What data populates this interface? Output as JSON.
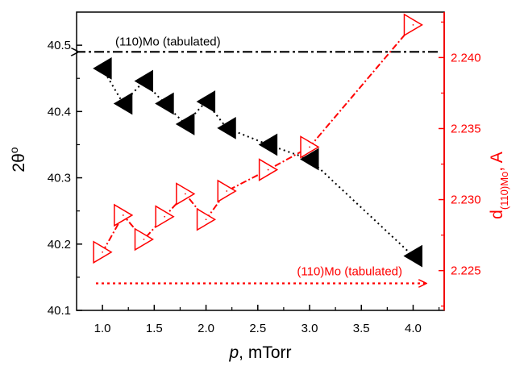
{
  "chart_data": {
    "type": "scatter",
    "xlabel": "p, mTorr",
    "ylabel_left": "2θ°",
    "ylabel_right": "d(110)Mo, A",
    "xlim": [
      0.75,
      4.3
    ],
    "ylim_left": [
      40.1,
      40.55
    ],
    "ylim_right": [
      2.2222,
      2.2432
    ],
    "x_ticks": [
      "1.0",
      "1.5",
      "2.0",
      "2.5",
      "3.0",
      "3.5",
      "4.0"
    ],
    "y_left_ticks": [
      "40.1",
      "40.2",
      "40.3",
      "40.4",
      "40.5"
    ],
    "y_right_ticks": [
      "2.225",
      "2.230",
      "2.235",
      "2.240"
    ],
    "grid": false,
    "series": [
      {
        "axis": "left",
        "color": "#000000",
        "marker": "filled-left-triangle",
        "line": "dotted",
        "x": [
          1.0,
          1.2,
          1.4,
          1.6,
          1.8,
          2.0,
          2.2,
          2.6,
          3.0,
          4.0
        ],
        "y": [
          40.465,
          40.412,
          40.446,
          40.412,
          40.381,
          40.415,
          40.375,
          40.35,
          40.328,
          40.182
        ]
      },
      {
        "axis": "right",
        "color": "#ff0000",
        "marker": "open-right-triangle",
        "line": "dash-dot",
        "x": [
          1.0,
          1.2,
          1.4,
          1.6,
          1.8,
          2.0,
          2.2,
          2.6,
          3.0,
          4.0
        ],
        "y": [
          2.2263,
          2.2289,
          2.2272,
          2.2288,
          2.2304,
          2.2286,
          2.2306,
          2.2321,
          2.2337,
          2.2423
        ]
      }
    ],
    "reference_lines": [
      {
        "axis": "left",
        "value": 40.49,
        "color": "#000000",
        "style": "dash-dot",
        "label": "(110)Mo (tabulated)",
        "arrow": "left"
      },
      {
        "axis": "right",
        "value": 2.2241,
        "color": "#ff0000",
        "style": "dotted",
        "label": "(110)Mo (tabulated)",
        "arrow": "right"
      }
    ]
  }
}
